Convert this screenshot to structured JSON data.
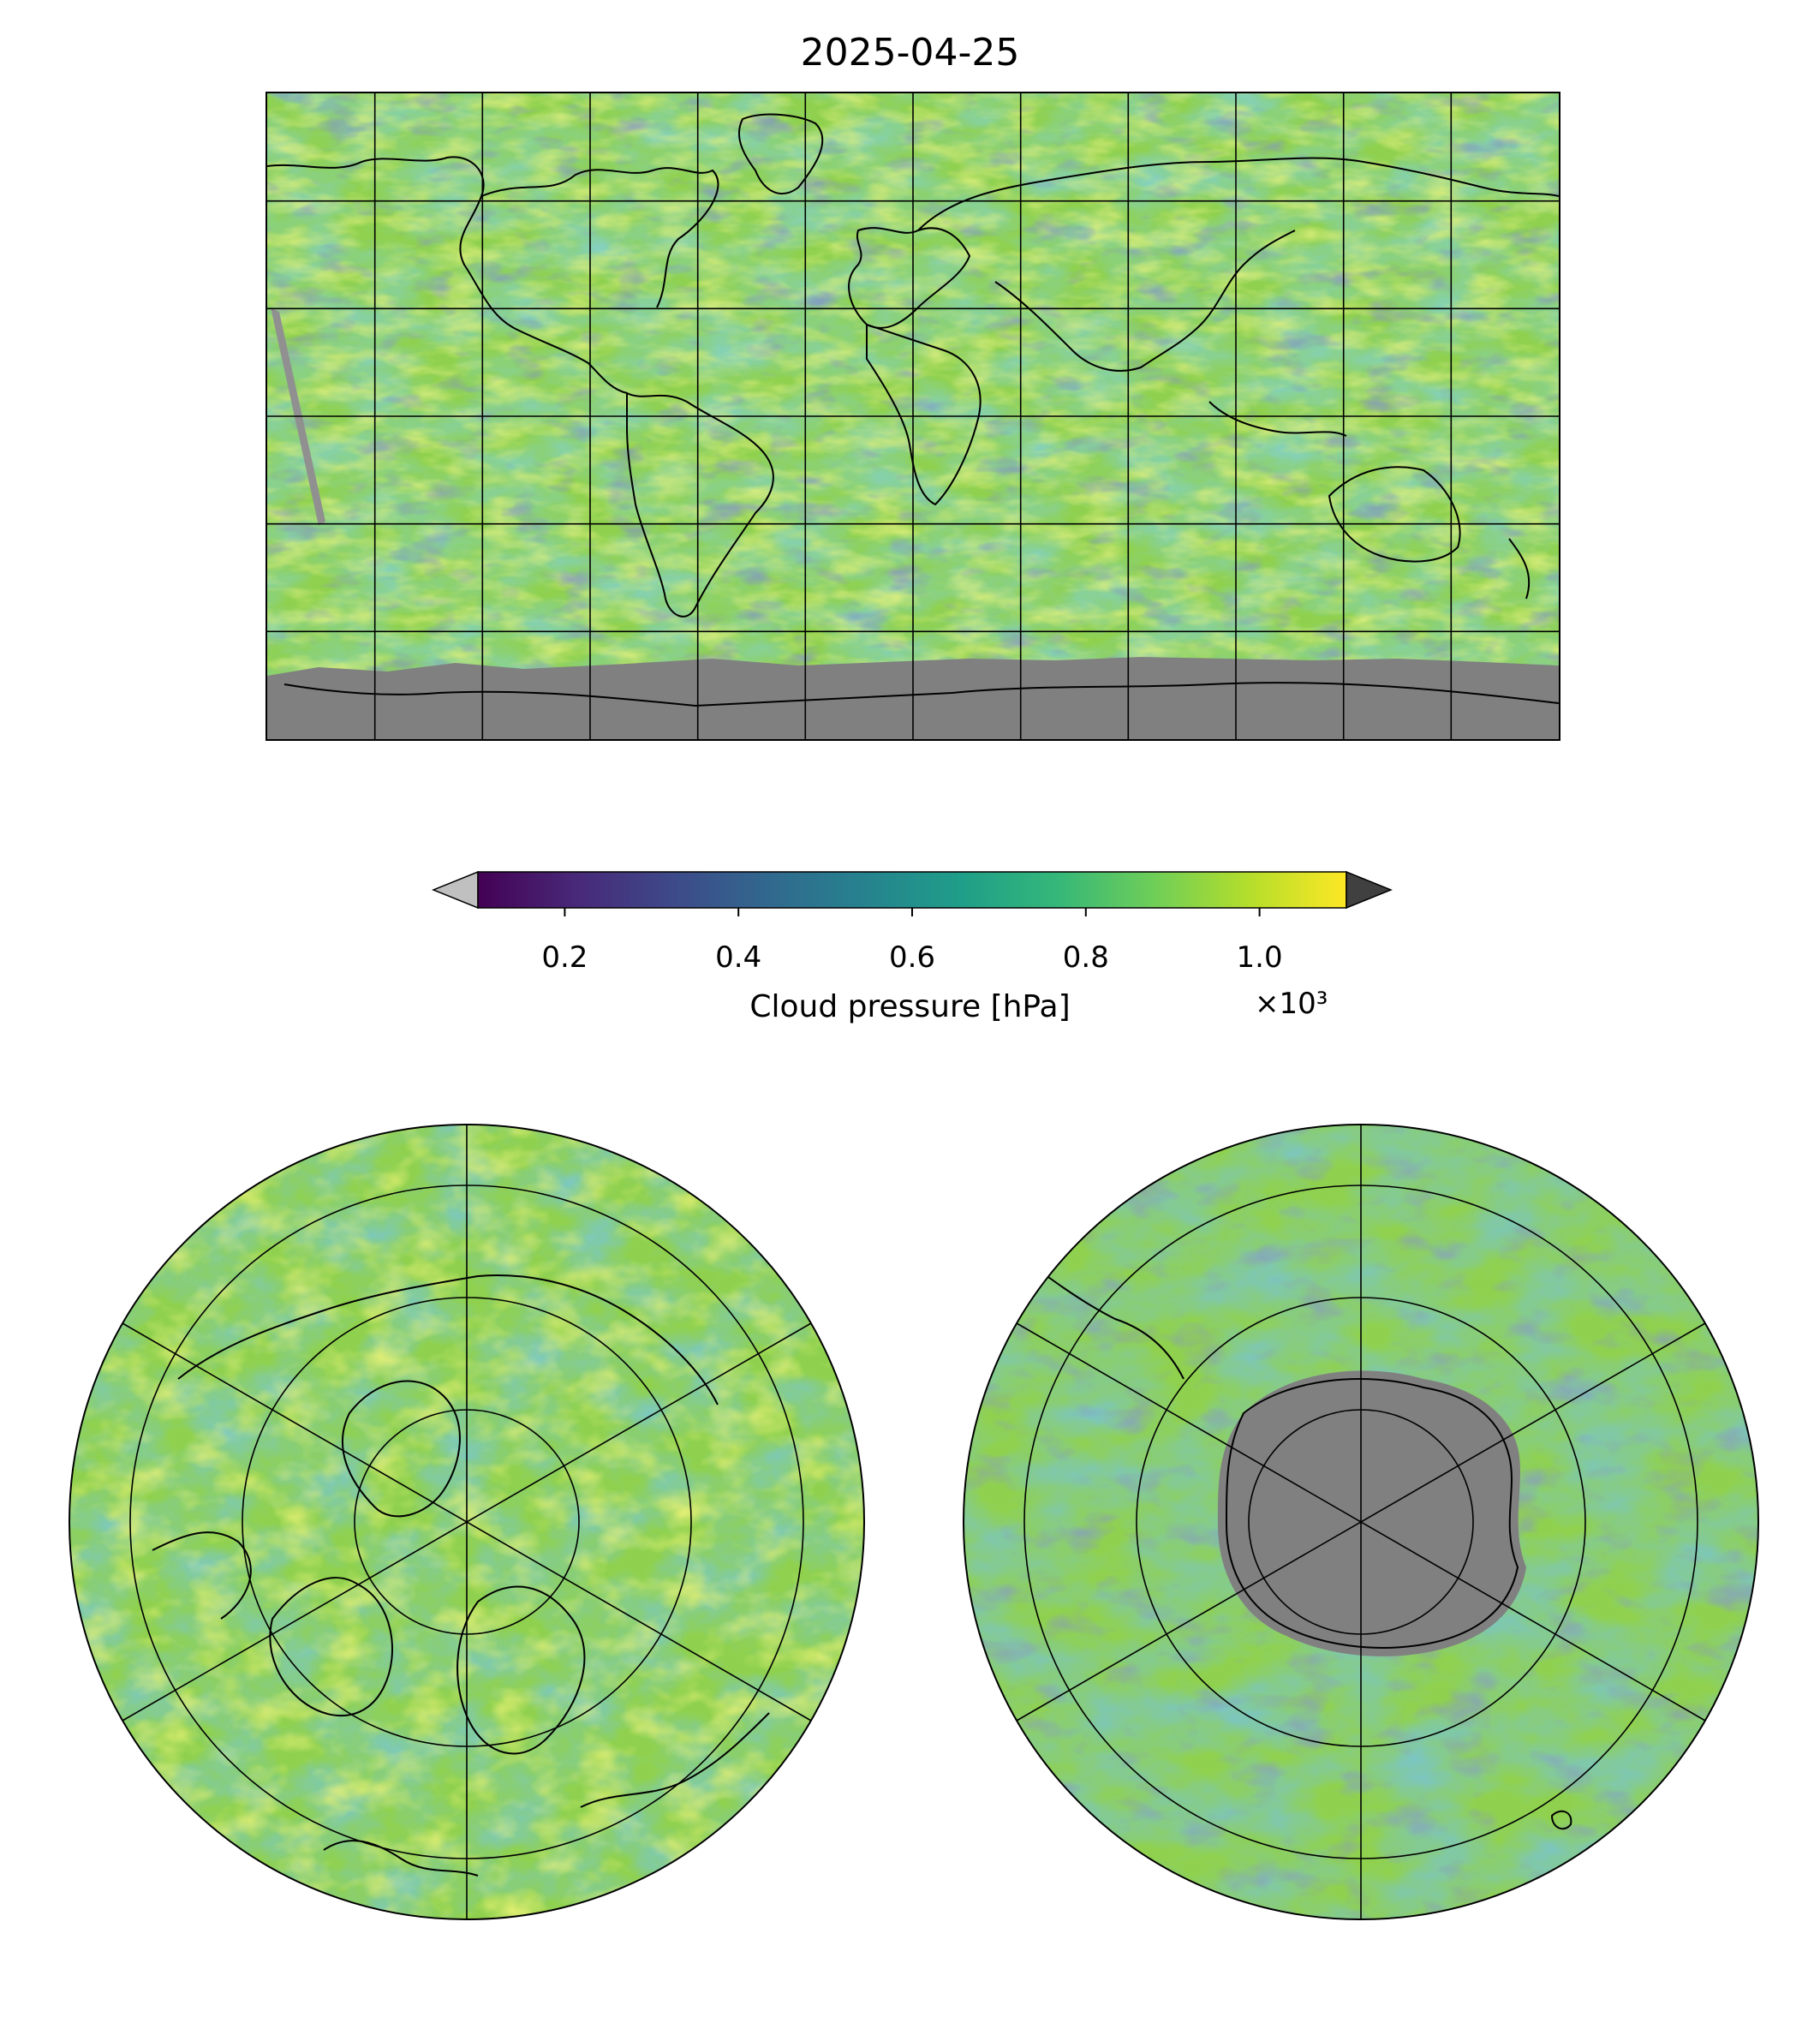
{
  "figure": {
    "title": "2025-04-25"
  },
  "colorbar": {
    "label": "Cloud pressure [hPa]",
    "multiplier": "×10³",
    "tick_labels": [
      "0.2",
      "0.4",
      "0.6",
      "0.8",
      "1.0"
    ],
    "ticks": [
      0.2,
      0.4,
      0.6,
      0.8,
      1.0
    ],
    "vmin": 0.1,
    "vmax": 1.1,
    "colormap": "viridis",
    "under_color": "#c0c0c0",
    "over_color": "#404040",
    "gradient_stops": [
      "#440154",
      "#482878",
      "#3e4989",
      "#31688e",
      "#26828e",
      "#1f9e89",
      "#35b779",
      "#6ece58",
      "#b5de2b",
      "#fde725"
    ]
  },
  "maps": {
    "global": {
      "projection": "Plate Carree",
      "gridlines": true,
      "coastlines": true,
      "missing_color": "#808080"
    },
    "north_polar": {
      "projection": "North Polar Stereographic",
      "gridlines": true,
      "coastlines": true
    },
    "south_polar": {
      "projection": "South Polar Stereographic",
      "gridlines": true,
      "coastlines": true,
      "missing_color": "#808080"
    }
  }
}
